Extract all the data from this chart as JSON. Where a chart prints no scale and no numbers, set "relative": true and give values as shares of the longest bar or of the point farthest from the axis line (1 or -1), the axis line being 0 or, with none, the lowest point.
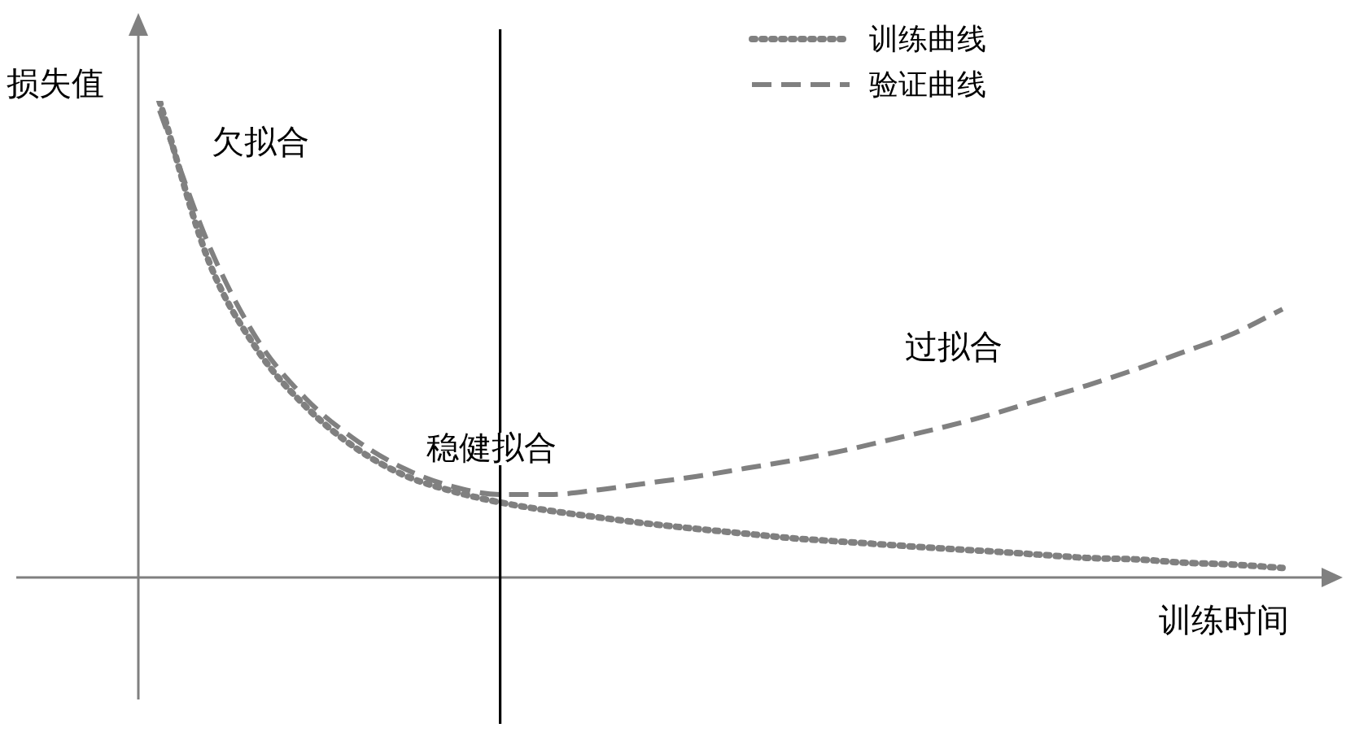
{
  "chart_data": {
    "type": "line",
    "relative": true,
    "ylabel": "损失值",
    "xlabel": "训练时间",
    "legend": "top right",
    "marker": "none",
    "categories": [
      null,
      null,
      null,
      null,
      null,
      null,
      null,
      null,
      null,
      null,
      null,
      null,
      null,
      null,
      null,
      null,
      null,
      null,
      null,
      null,
      null,
      null,
      null,
      null
    ],
    "series": [
      {
        "name": "训练曲线",
        "color": "#808080",
        "line_style": "dotted",
        "values": [
          1.0,
          0.666,
          0.478,
          0.358,
          0.273,
          0.215,
          0.181,
          0.157,
          0.14,
          0.126,
          0.113,
          0.102,
          0.092,
          0.082,
          0.075,
          0.068,
          0.061,
          0.055,
          0.048,
          0.041,
          0.038,
          0.031,
          0.027,
          0.02
        ]
      },
      {
        "name": "验证曲线",
        "color": "#808080",
        "line_style": "dashed",
        "values": [
          0.98,
          0.7,
          0.5,
          0.375,
          0.29,
          0.229,
          0.191,
          0.174,
          0.174,
          0.184,
          0.198,
          0.212,
          0.229,
          0.246,
          0.266,
          0.29,
          0.314,
          0.341,
          0.372,
          0.403,
          0.437,
          0.474,
          0.512,
          0.563
        ]
      }
    ],
    "annotations": [
      "欠拟合",
      "稳健拟合",
      "过拟合"
    ]
  }
}
